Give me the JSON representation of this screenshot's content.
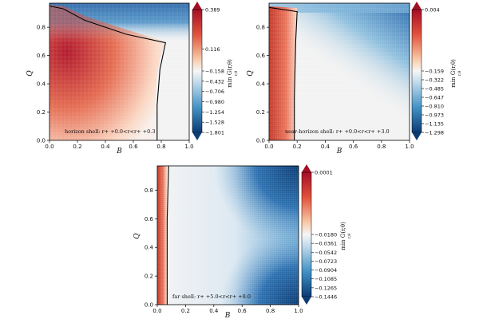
{
  "chart_data": [
    {
      "type": "heatmap",
      "panel": "horizon-shell",
      "annotation": "horizon shell: r+ +0.0<r<r+ +0.3",
      "xlabel": "B",
      "ylabel": "Q",
      "xlim": [
        0,
        1
      ],
      "ylim": [
        0,
        0.97
      ],
      "xticks": [
        "0.0",
        "0.2",
        "0.4",
        "0.6",
        "0.8",
        "1.0"
      ],
      "yticks": [
        "0.0",
        "0.2",
        "0.4",
        "0.6",
        "0.8"
      ],
      "colorbar": {
        "label": "min G(r,θ)",
        "sublabel": "r,θ",
        "vmin": -1.801,
        "vmax": 0.389,
        "center": 0,
        "ticks": [
          "0.389",
          "0.116",
          "−0.158",
          "−0.432",
          "−0.706",
          "−0.980",
          "−1.254",
          "−1.528",
          "−1.801"
        ]
      },
      "contour": [
        [
          0,
          0.95
        ],
        [
          0.1,
          0.93
        ],
        [
          0.25,
          0.85
        ],
        [
          0.55,
          0.75
        ],
        [
          0.83,
          0.69
        ],
        [
          0.79,
          0.5
        ],
        [
          0.77,
          0.25
        ],
        [
          0.77,
          0
        ]
      ],
      "features": {
        "red_region": "left of contour",
        "blue_band": "Q near top"
      }
    },
    {
      "type": "heatmap",
      "panel": "near-horizon-shell",
      "annotation": "near-horizon shell: r+ +0.0<r<r+ +3.0",
      "xlabel": "B",
      "ylabel": "Q",
      "xlim": [
        0,
        1
      ],
      "ylim": [
        0,
        0.97
      ],
      "xticks": [
        "0.0",
        "0.2",
        "0.4",
        "0.6",
        "0.8",
        "1.0"
      ],
      "yticks": [
        "0.0",
        "0.2",
        "0.4",
        "0.6",
        "0.8"
      ],
      "colorbar": {
        "label": "min G(r,θ)",
        "sublabel": "r,θ",
        "vmin": -1.298,
        "vmax": 0.004,
        "center": 0,
        "ticks": [
          "0.004",
          "−0.159",
          "−0.322",
          "−0.485",
          "−0.647",
          "−0.810",
          "−0.973",
          "−1.135",
          "−1.298"
        ]
      },
      "contour": [
        [
          0,
          0.94
        ],
        [
          0.2,
          0.91
        ],
        [
          0.19,
          0.7
        ],
        [
          0.18,
          0.3
        ],
        [
          0.18,
          0
        ]
      ],
      "features": {
        "red_region": "B < 0.18",
        "blue_band": "upper right"
      }
    },
    {
      "type": "heatmap",
      "panel": "far-shell",
      "annotation": "far shell: r+ +5.0<r<r+ +8.0",
      "xlabel": "B",
      "ylabel": "Q",
      "xlim": [
        0,
        1
      ],
      "ylim": [
        0,
        0.97
      ],
      "xticks": [
        "0.0",
        "0.2",
        "0.4",
        "0.6",
        "0.8",
        "1.0"
      ],
      "yticks": [
        "0.0",
        "0.2",
        "0.4",
        "0.6",
        "0.8"
      ],
      "colorbar": {
        "label": "min G(r,θ)",
        "sublabel": "r,θ",
        "vmin": -0.1446,
        "vmax": 0.0001,
        "center": 0,
        "ticks": [
          "0.0001",
          "−0.0180",
          "−0.0361",
          "−0.0542",
          "−0.0723",
          "−0.0904",
          "−0.1085",
          "−0.1265",
          "−0.1446"
        ]
      },
      "contour": [
        [
          0.08,
          0.97
        ],
        [
          0.07,
          0.6
        ],
        [
          0.07,
          0
        ]
      ],
      "features": {
        "red_region": "B < 0.07",
        "blue_corners": "top right and bottom right"
      }
    }
  ]
}
